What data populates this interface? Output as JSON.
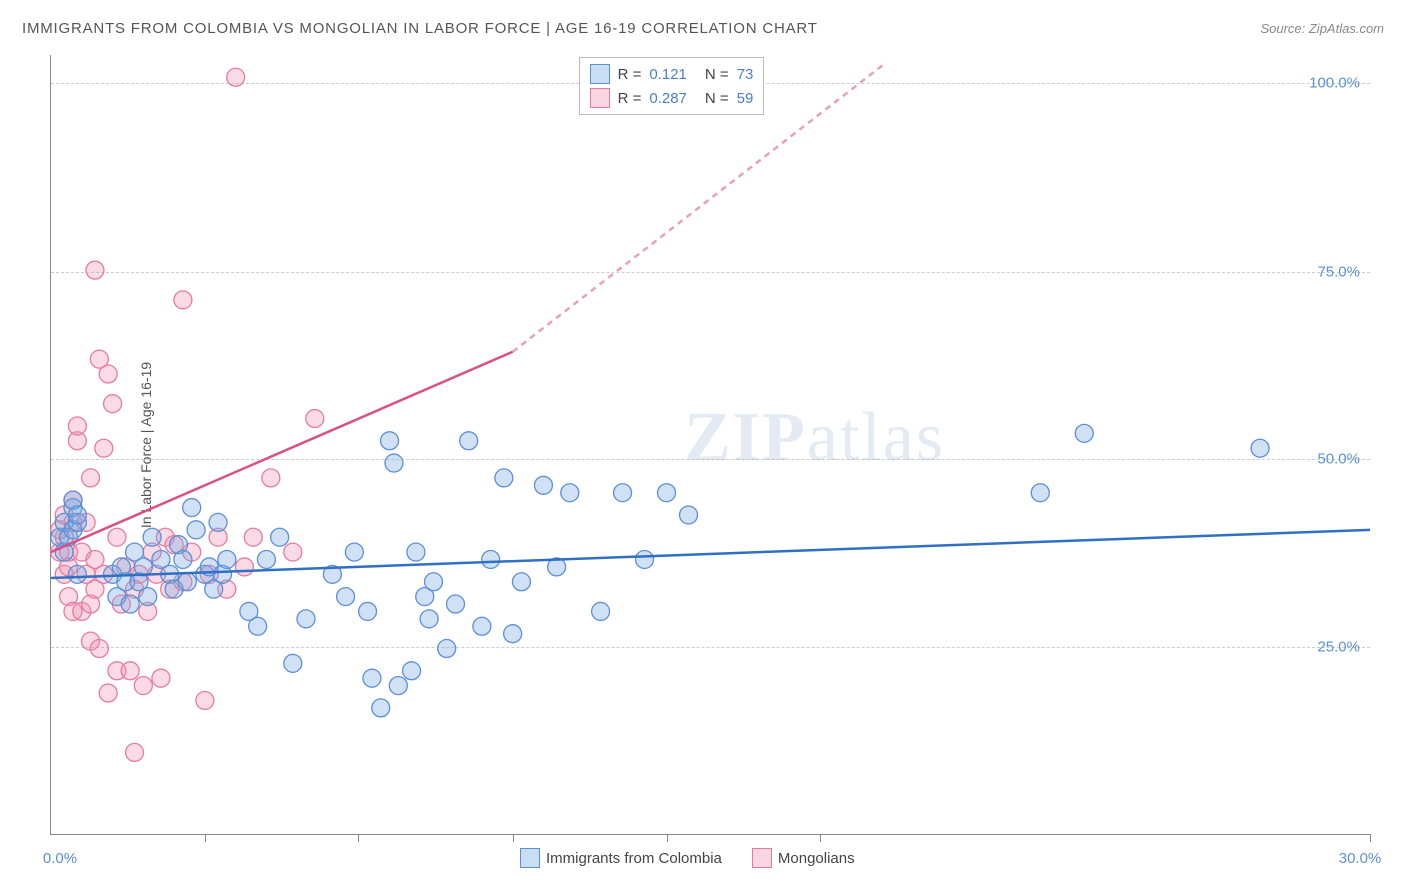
{
  "title": "IMMIGRANTS FROM COLOMBIA VS MONGOLIAN IN LABOR FORCE | AGE 16-19 CORRELATION CHART",
  "source": "Source: ZipAtlas.com",
  "ylabel": "In Labor Force | Age 16-19",
  "watermark_zip": "ZIP",
  "watermark_atlas": "atlas",
  "chart": {
    "type": "scatter",
    "xlim": [
      0,
      30
    ],
    "ylim": [
      0,
      105
    ],
    "xtick_positions": [
      0,
      3.5,
      7,
      10.5,
      14,
      17.5,
      30
    ],
    "xtick_labels_shown": {
      "0": "0.0%",
      "30": "30.0%"
    },
    "ytick_positions": [
      25,
      50,
      75,
      100
    ],
    "ytick_labels": {
      "25": "25.0%",
      "50": "50.0%",
      "75": "75.0%",
      "100": "100.0%"
    },
    "background_color": "#ffffff",
    "grid_color": "#cccccc",
    "axis_color": "#888888",
    "label_color": "#5b8fd6",
    "title_fontsize": 15,
    "label_fontsize": 14,
    "tick_fontsize": 15,
    "marker_radius": 9,
    "marker_stroke_width": 1.3,
    "trend_line_width": 2.5
  },
  "series": {
    "colombia": {
      "label": "Immigrants from Colombia",
      "fill_color": "rgba(120,170,225,0.35)",
      "stroke_color": "#5b8fd6",
      "r_value": "0.121",
      "n_value": "73",
      "trend": {
        "x1": 0,
        "y1": 34.5,
        "x2": 30,
        "y2": 41,
        "dash": "none"
      },
      "points": [
        [
          0.2,
          40
        ],
        [
          0.3,
          42
        ],
        [
          0.3,
          38
        ],
        [
          0.4,
          40
        ],
        [
          0.5,
          44
        ],
        [
          0.5,
          41
        ],
        [
          0.5,
          45
        ],
        [
          0.6,
          42
        ],
        [
          0.6,
          43
        ],
        [
          0.6,
          35
        ],
        [
          1.4,
          35
        ],
        [
          1.5,
          32
        ],
        [
          1.6,
          36
        ],
        [
          1.7,
          34
        ],
        [
          1.8,
          31
        ],
        [
          1.9,
          38
        ],
        [
          2.0,
          34
        ],
        [
          2.1,
          36
        ],
        [
          2.2,
          32
        ],
        [
          2.3,
          40
        ],
        [
          2.5,
          37
        ],
        [
          2.7,
          35
        ],
        [
          2.8,
          33
        ],
        [
          2.9,
          39
        ],
        [
          3.0,
          37
        ],
        [
          3.1,
          34
        ],
        [
          3.2,
          44
        ],
        [
          3.3,
          41
        ],
        [
          3.5,
          35
        ],
        [
          3.6,
          36
        ],
        [
          3.7,
          33
        ],
        [
          3.8,
          42
        ],
        [
          3.9,
          35
        ],
        [
          4.0,
          37
        ],
        [
          4.5,
          30
        ],
        [
          4.7,
          28
        ],
        [
          4.9,
          37
        ],
        [
          5.2,
          40
        ],
        [
          5.5,
          23
        ],
        [
          5.8,
          29
        ],
        [
          6.4,
          35
        ],
        [
          6.7,
          32
        ],
        [
          6.9,
          38
        ],
        [
          7.2,
          30
        ],
        [
          7.3,
          21
        ],
        [
          7.5,
          17
        ],
        [
          7.7,
          53
        ],
        [
          7.8,
          50
        ],
        [
          7.9,
          20
        ],
        [
          8.2,
          22
        ],
        [
          8.3,
          38
        ],
        [
          8.5,
          32
        ],
        [
          8.6,
          29
        ],
        [
          8.7,
          34
        ],
        [
          9.0,
          25
        ],
        [
          9.2,
          31
        ],
        [
          9.5,
          53
        ],
        [
          9.8,
          28
        ],
        [
          10.0,
          37
        ],
        [
          10.3,
          48
        ],
        [
          10.5,
          27
        ],
        [
          10.7,
          34
        ],
        [
          11.2,
          47
        ],
        [
          11.5,
          36
        ],
        [
          11.8,
          46
        ],
        [
          12.5,
          30
        ],
        [
          13.0,
          46
        ],
        [
          13.5,
          37
        ],
        [
          14.0,
          46
        ],
        [
          14.5,
          43
        ],
        [
          22.5,
          46
        ],
        [
          23.5,
          54
        ],
        [
          27.5,
          52
        ]
      ]
    },
    "mongolians": {
      "label": "Mongolians",
      "fill_color": "rgba(240,150,180,0.35)",
      "stroke_color": "#e57ba0",
      "r_value": "0.287",
      "n_value": "59",
      "trend_solid": {
        "x1": 0,
        "y1": 38,
        "x2": 10.5,
        "y2": 65
      },
      "trend_dash": {
        "x1": 10.5,
        "y1": 65,
        "x2": 19,
        "y2": 104
      },
      "points": [
        [
          0.2,
          38
        ],
        [
          0.3,
          40
        ],
        [
          0.2,
          41
        ],
        [
          0.3,
          43
        ],
        [
          0.3,
          35
        ],
        [
          0.4,
          38
        ],
        [
          0.4,
          32
        ],
        [
          0.4,
          36
        ],
        [
          0.5,
          30
        ],
        [
          0.5,
          42
        ],
        [
          0.5,
          45
        ],
        [
          0.6,
          53
        ],
        [
          0.6,
          55
        ],
        [
          0.7,
          38
        ],
        [
          0.7,
          30
        ],
        [
          0.8,
          35
        ],
        [
          0.8,
          42
        ],
        [
          0.9,
          26
        ],
        [
          0.9,
          31
        ],
        [
          0.9,
          48
        ],
        [
          1.0,
          76
        ],
        [
          1.0,
          37
        ],
        [
          1.0,
          33
        ],
        [
          1.1,
          64
        ],
        [
          1.1,
          25
        ],
        [
          1.2,
          52
        ],
        [
          1.2,
          35
        ],
        [
          1.3,
          19
        ],
        [
          1.3,
          62
        ],
        [
          1.4,
          58
        ],
        [
          1.5,
          22
        ],
        [
          1.5,
          40
        ],
        [
          1.6,
          31
        ],
        [
          1.7,
          36
        ],
        [
          1.8,
          22
        ],
        [
          1.9,
          33
        ],
        [
          1.9,
          11
        ],
        [
          2.0,
          35
        ],
        [
          2.1,
          20
        ],
        [
          2.2,
          30
        ],
        [
          2.3,
          38
        ],
        [
          2.4,
          35
        ],
        [
          2.5,
          21
        ],
        [
          2.6,
          40
        ],
        [
          2.7,
          33
        ],
        [
          2.8,
          39
        ],
        [
          3.0,
          72
        ],
        [
          3.0,
          34
        ],
        [
          3.2,
          38
        ],
        [
          3.5,
          18
        ],
        [
          3.6,
          35
        ],
        [
          3.8,
          40
        ],
        [
          4.0,
          33
        ],
        [
          4.2,
          102
        ],
        [
          4.4,
          36
        ],
        [
          4.6,
          40
        ],
        [
          5.0,
          48
        ],
        [
          5.5,
          38
        ],
        [
          6.0,
          56
        ]
      ]
    }
  },
  "legend_top": {
    "r_label": "R =",
    "n_label": "N ="
  },
  "xlabel_bottom_legend": true
}
